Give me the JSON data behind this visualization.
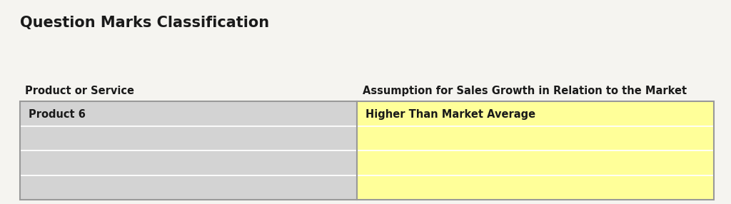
{
  "title": "Question Marks Classification",
  "title_fontsize": 15,
  "title_fontweight": "bold",
  "background_color": "#F5F4F0",
  "col1_header": "Product or Service",
  "col2_header": "Assumption for Sales Growth in Relation to the Market",
  "header_fontsize": 10.5,
  "header_fontweight": "bold",
  "rows": [
    {
      "col1": "Product 6",
      "col2": "Higher Than Market Average"
    },
    {
      "col1": "",
      "col2": ""
    },
    {
      "col1": "",
      "col2": ""
    },
    {
      "col1": "",
      "col2": ""
    }
  ],
  "col1_bg": "#D3D3D3",
  "col2_bg": "#FFFF99",
  "row_line_color": "#FFFFFF",
  "border_color": "#999999",
  "cell_fontsize": 10.5,
  "cell_fontweight": "bold",
  "title_color": "#1a1a1a",
  "cell_text_color": "#1a1a1a"
}
